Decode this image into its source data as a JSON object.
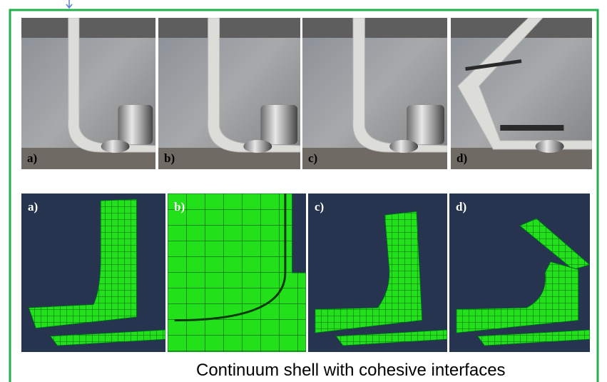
{
  "photos": {
    "labels": [
      "a)",
      "b)",
      "c)",
      "d)"
    ]
  },
  "simulations": {
    "labels": [
      "a)",
      "b)",
      "c)",
      "d)"
    ]
  },
  "caption": "Continuum shell with cohesive interfaces"
}
